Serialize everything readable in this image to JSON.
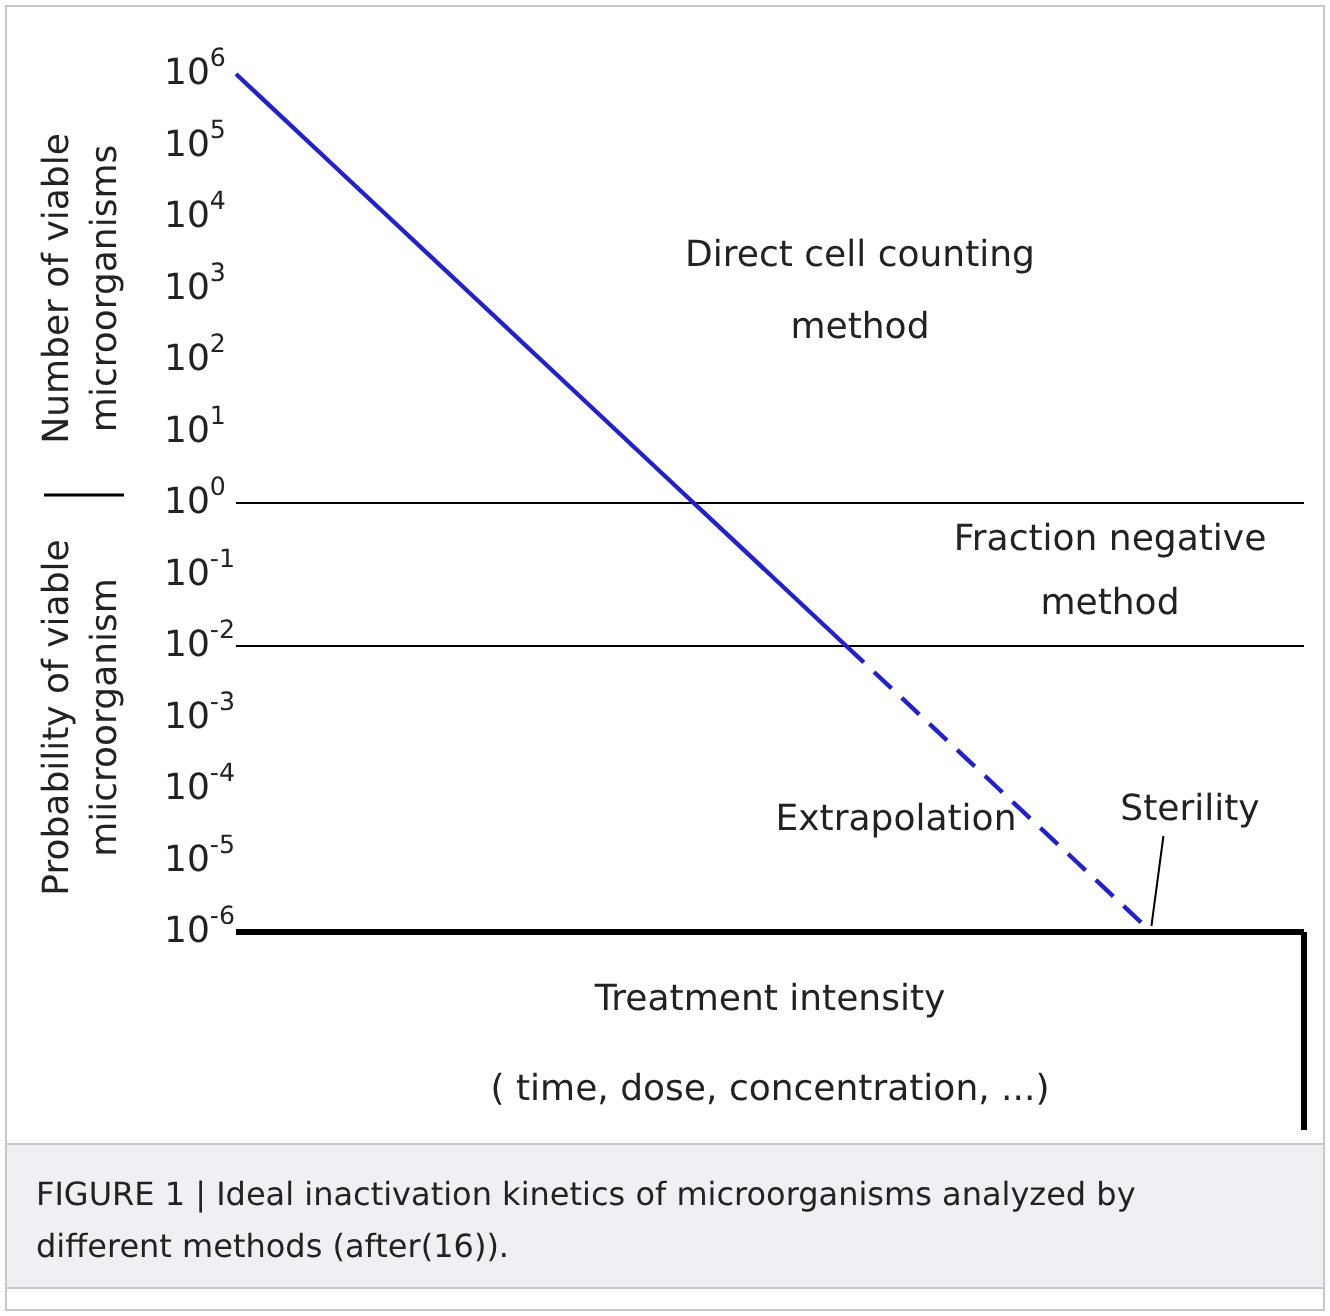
{
  "chart_data": {
    "type": "line",
    "xlabel": "Treatment intensity\n( time, dose, concentration, ...)",
    "ylabel": "Number of viable microorganisms",
    "categories": [
      null,
      null,
      null,
      null,
      null,
      null,
      null,
      null,
      null,
      null,
      null,
      null,
      null,
      null,
      null
    ],
    "series": [
      {
        "color": "#2222cc",
        "line_style": "solid",
        "values": [
          1000000,
          100000,
          10000,
          1000,
          100,
          10,
          1,
          0.1,
          0.01,
          null,
          null,
          null,
          null,
          null,
          null
        ]
      },
      {
        "color": "#2222cc",
        "line_style": "dashed",
        "values": [
          null,
          null,
          null,
          null,
          null,
          null,
          null,
          null,
          0.01,
          0.001,
          0.0001,
          1e-05,
          1e-06,
          null,
          null
        ]
      }
    ],
    "log": true,
    "ylim": [
      1e-06,
      1000000
    ],
    "yticks": [
      {
        "value": 1000000,
        "label": "10$^{6}$"
      },
      {
        "value": 100000,
        "label": "10$^{5}$"
      },
      {
        "value": 10000,
        "label": "10$^{4}$"
      },
      {
        "value": 1000,
        "label": "10$^{3}$"
      },
      {
        "value": 100,
        "label": "10$^{2}$"
      },
      {
        "value": 10,
        "label": "10$^{1}$"
      },
      {
        "value": 1,
        "label": "10$^{0}$"
      },
      {
        "value": 0.1,
        "label": "10$^{-1}$"
      },
      {
        "value": 0.01,
        "label": "10$^{-2}$"
      },
      {
        "value": 0.001,
        "label": "10$^{-3}$"
      },
      {
        "value": 0.0001,
        "label": "10$^{-4}$"
      },
      {
        "value": 1e-05,
        "label": "10$^{-5}$"
      },
      {
        "value": 1e-06,
        "label": "10$^{-6}$"
      }
    ],
    "tick_labels": "y",
    "grid": false,
    "marker": "none",
    "ref_lines": [
      {
        "axis": "y",
        "value": 1,
        "color": "#000000"
      },
      {
        "axis": "y",
        "value": 0.01,
        "color": "#000000"
      }
    ],
    "annotations": [
      "Direct cell counting method",
      "Fraction negative method",
      "Extrapolation",
      "Sterility",
      "Probability of viable miicroorganism",
      "FIGURE 1 | Ideal inactivation kinetics of microorganisms analyzed by different methods (after(16))."
    ]
  }
}
